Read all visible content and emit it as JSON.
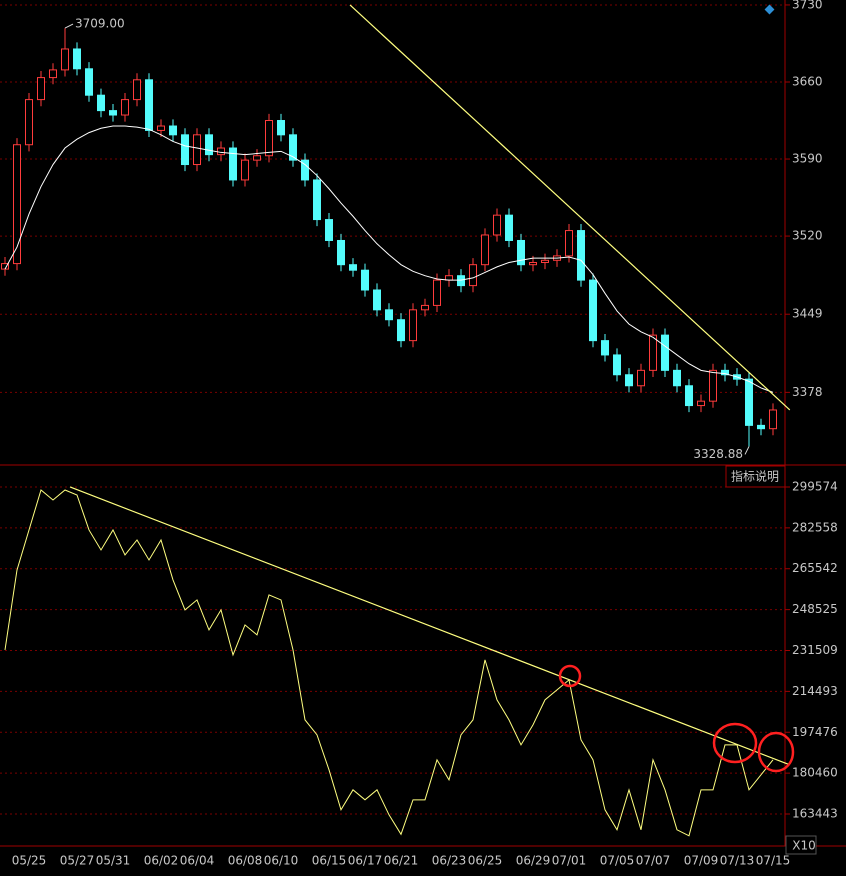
{
  "chart_data": [
    {
      "type": "candlestick",
      "categories": [
        null,
        null,
        "05/25",
        null,
        null,
        null,
        "05/27",
        null,
        null,
        "05/31",
        null,
        null,
        null,
        "06/02",
        null,
        null,
        "06/04",
        null,
        null,
        null,
        "06/08",
        null,
        null,
        "06/10",
        null,
        null,
        null,
        "06/15",
        null,
        null,
        "06/17",
        null,
        null,
        "06/21",
        null,
        null,
        null,
        "06/23",
        null,
        null,
        "06/25",
        null,
        null,
        null,
        "06/29",
        null,
        null,
        "07/01",
        null,
        null,
        null,
        "07/05",
        null,
        null,
        "07/07",
        null,
        null,
        null,
        "07/09",
        null,
        null,
        "07/13",
        null,
        null,
        "07/15"
      ],
      "open": [
        3490,
        3495,
        3603,
        3644,
        3664,
        3671,
        3690,
        3672,
        3648,
        3634,
        3630,
        3644,
        3662,
        3616,
        3620,
        3612,
        3585,
        3612,
        3594,
        3600,
        3571,
        3589,
        3593,
        3625,
        3612,
        3589,
        3571,
        3535,
        3516,
        3494,
        3489,
        3471,
        3453,
        3444,
        3425,
        3453,
        3457,
        3480,
        3484,
        3475,
        3494,
        3521,
        3539,
        3516,
        3494,
        3496,
        3498,
        3502,
        3525,
        3480,
        3425,
        3412,
        3394,
        3384,
        3398,
        3430,
        3398,
        3384,
        3366,
        3370,
        3398,
        3394,
        3390,
        3348,
        3345
      ],
      "high": [
        3501,
        3609,
        3650,
        3670,
        3677,
        3709,
        3696,
        3678,
        3654,
        3640,
        3650,
        3668,
        3668,
        3626,
        3626,
        3618,
        3618,
        3618,
        3606,
        3606,
        3595,
        3599,
        3631,
        3631,
        3618,
        3595,
        3577,
        3541,
        3522,
        3500,
        3495,
        3477,
        3459,
        3450,
        3459,
        3463,
        3486,
        3490,
        3490,
        3500,
        3527,
        3545,
        3545,
        3522,
        3502,
        3504,
        3508,
        3531,
        3531,
        3486,
        3431,
        3418,
        3400,
        3404,
        3436,
        3436,
        3404,
        3390,
        3376,
        3404,
        3404,
        3400,
        3396,
        3354,
        3368
      ],
      "low": [
        3484,
        3489,
        3597,
        3638,
        3658,
        3665,
        3666,
        3642,
        3628,
        3624,
        3624,
        3638,
        3610,
        3610,
        3606,
        3579,
        3579,
        3588,
        3588,
        3565,
        3565,
        3583,
        3587,
        3606,
        3583,
        3565,
        3529,
        3510,
        3488,
        3483,
        3465,
        3447,
        3438,
        3419,
        3419,
        3447,
        3451,
        3474,
        3469,
        3469,
        3488,
        3515,
        3510,
        3488,
        3488,
        3490,
        3492,
        3496,
        3474,
        3419,
        3406,
        3388,
        3378,
        3378,
        3392,
        3392,
        3378,
        3360,
        3360,
        3364,
        3388,
        3384,
        3328.88,
        3339,
        3339
      ],
      "close": [
        3495,
        3603,
        3644,
        3664,
        3671,
        3690,
        3672,
        3648,
        3634,
        3630,
        3644,
        3662,
        3616,
        3620,
        3612,
        3585,
        3612,
        3594,
        3600,
        3571,
        3589,
        3593,
        3625,
        3612,
        3589,
        3571,
        3535,
        3516,
        3494,
        3489,
        3471,
        3453,
        3444,
        3425,
        3453,
        3457,
        3480,
        3484,
        3475,
        3494,
        3521,
        3539,
        3516,
        3494,
        3496,
        3498,
        3502,
        3525,
        3480,
        3425,
        3412,
        3394,
        3384,
        3398,
        3430,
        3398,
        3384,
        3366,
        3370,
        3398,
        3394,
        3390,
        3348,
        3345,
        3362
      ],
      "ma": [
        3490,
        3510,
        3540,
        3565,
        3585,
        3600,
        3608,
        3614,
        3618,
        3620,
        3620,
        3619,
        3617,
        3612,
        3606,
        3602,
        3600,
        3598,
        3596,
        3595,
        3594,
        3595,
        3596,
        3597,
        3592,
        3585,
        3575,
        3563,
        3550,
        3538,
        3525,
        3513,
        3503,
        3494,
        3488,
        3484,
        3481,
        3480,
        3480,
        3482,
        3487,
        3492,
        3496,
        3498,
        3500,
        3500,
        3500,
        3501,
        3498,
        3485,
        3468,
        3452,
        3440,
        3433,
        3428,
        3420,
        3412,
        3404,
        3398,
        3396,
        3395,
        3392,
        3388,
        3382,
        3378
      ],
      "high_label": "3709.00",
      "low_label": "3328.88",
      "trendline": {
        "x": [
          28.75,
          65.4
        ],
        "values": [
          3730,
          3362
        ]
      },
      "up_color": "#ff3c3c",
      "down_color": "#54fcfc",
      "ma_color": "#ffffff",
      "trend_color": "#ffff80",
      "ylim": [
        3312,
        3734.5
      ],
      "yticks": [
        3730,
        3660,
        3590,
        3520,
        3449,
        3378
      ],
      "grid": true
    },
    {
      "type": "line",
      "button": "指标说明",
      "scale_label": "X10",
      "values": [
        231760,
        265043,
        281684,
        298326,
        294165,
        298326,
        296246,
        281684,
        273363,
        281684,
        271283,
        277524,
        269203,
        277524,
        260882,
        248401,
        252561,
        240080,
        248401,
        229679,
        242160,
        238000,
        254642,
        252561,
        231760,
        202637,
        196396,
        181835,
        165193,
        173514,
        169353,
        173514,
        163113,
        155000,
        169353,
        169353,
        185995,
        177674,
        196396,
        202637,
        227599,
        210957,
        202637,
        192236,
        200556,
        210957,
        215118,
        219278,
        194316,
        185995,
        165193,
        156872,
        173514,
        156872,
        185995,
        173514,
        156872,
        154376,
        173514,
        173514,
        192236,
        192236,
        173514,
        179754,
        185995
      ],
      "color": "#ffff80",
      "trendline": {
        "x": [
          5.42,
          65.4
        ],
        "values": [
          299574,
          183915
        ]
      },
      "ylim": [
        153458,
        308727
      ],
      "yticks": [
        299574,
        282558,
        265542,
        248525,
        231509,
        214493,
        197476,
        180460,
        163443
      ],
      "grid": true
    }
  ]
}
